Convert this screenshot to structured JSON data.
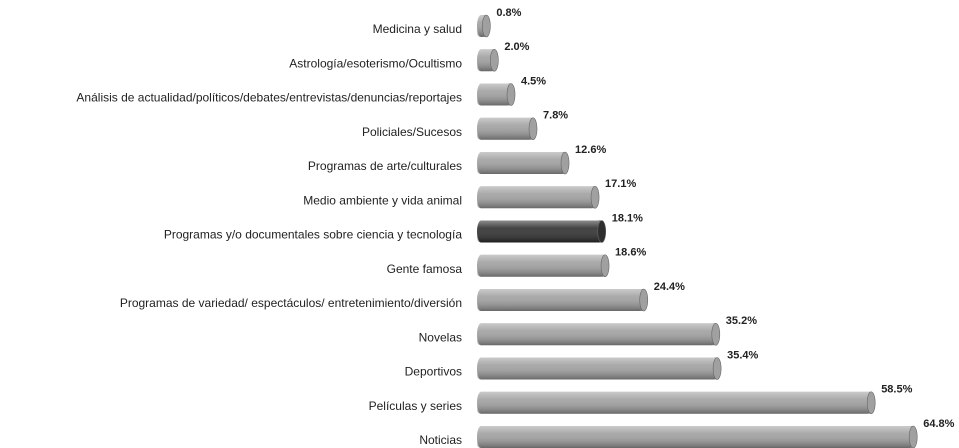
{
  "chart_data": {
    "type": "bar",
    "orientation": "horizontal",
    "categories": [
      "Medicina y salud",
      "Astrología/esoterismo/Ocultismo",
      "Análisis de actualidad/políticos/debates/entrevistas/denuncias/reportajes",
      "Policiales/Sucesos",
      "Programas de arte/culturales",
      "Medio ambiente y vida animal",
      "Programas y/o documentales sobre ciencia y tecnología",
      "Gente famosa",
      "Programas de variedad/ espectáculos/ entretenimiento/diversión",
      "Novelas",
      "Deportivos",
      "Películas y series",
      "Noticias"
    ],
    "values": [
      0.8,
      2.0,
      4.5,
      7.8,
      12.6,
      17.1,
      18.1,
      18.6,
      24.4,
      35.2,
      35.4,
      58.5,
      64.8
    ],
    "value_labels": [
      "0.8%",
      "2.0%",
      "4.5%",
      "7.8%",
      "12.6%",
      "17.1%",
      "18.1%",
      "18.6%",
      "24.4%",
      "35.2%",
      "35.4%",
      "58.5%",
      "64.8%"
    ],
    "colors": [
      "#a0a0a0",
      "#a0a0a0",
      "#a0a0a0",
      "#a0a0a0",
      "#a0a0a0",
      "#a0a0a0",
      "#2e2e2e",
      "#a0a0a0",
      "#a0a0a0",
      "#a0a0a0",
      "#a0a0a0",
      "#a0a0a0",
      "#a0a0a0"
    ]
  }
}
